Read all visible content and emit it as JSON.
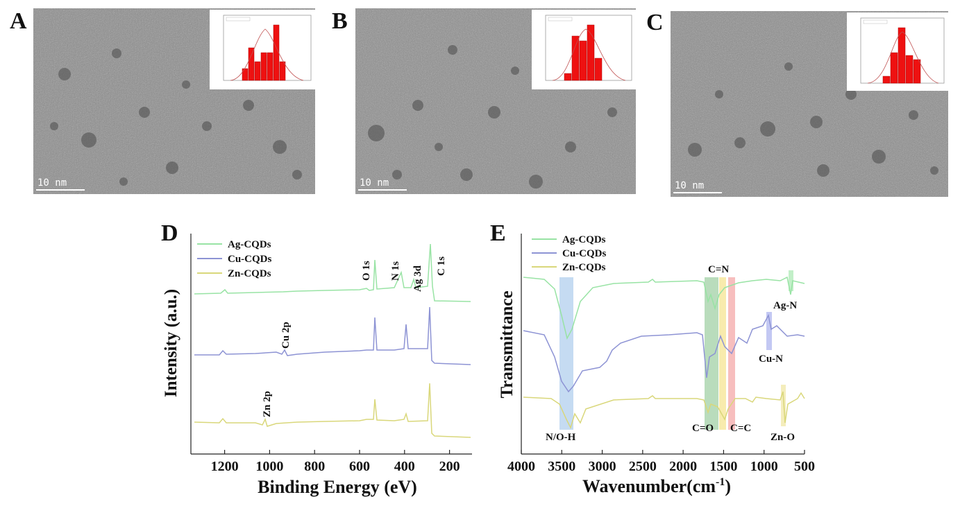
{
  "panels": {
    "A": {
      "letter": "A",
      "scale": "10 nm"
    },
    "B": {
      "letter": "B",
      "scale": "10 nm"
    },
    "C": {
      "letter": "C",
      "scale": "10 nm"
    },
    "D": {
      "letter": "D"
    },
    "E": {
      "letter": "E"
    }
  },
  "colors": {
    "ag": "#98e3a4",
    "cu": "#8d93d4",
    "zn": "#d9d77a",
    "bar": "#ee1111"
  },
  "chart_data": [
    {
      "id": "D",
      "type": "line",
      "xlabel": "Binding Energy (eV)",
      "ylabel": "Intensity (a.u.)",
      "xlim": [
        1350,
        100
      ],
      "xticks": [
        1200,
        1000,
        800,
        600,
        400,
        200
      ],
      "legend_position": "top-left",
      "series": [
        {
          "name": "Ag-CQDs",
          "color": "#98e3a4"
        },
        {
          "name": "Cu-CQDs",
          "color": "#8d93d4"
        },
        {
          "name": "Zn-CQDs",
          "color": "#d9d77a"
        }
      ],
      "annotations": [
        "O 1s",
        "N 1s",
        "Ag 3d",
        "C 1s",
        "Cu 2p",
        "Zn 2p"
      ]
    },
    {
      "id": "E",
      "type": "line",
      "xlabel": "Wavenumber(cm",
      "xlabel_sup": "-1",
      "xlabel_tail": ")",
      "ylabel": "Transmittance",
      "xlim": [
        4000,
        500
      ],
      "xticks": [
        4000,
        3500,
        3000,
        2500,
        2000,
        1500,
        1000,
        500
      ],
      "legend_position": "top-left",
      "series": [
        {
          "name": "Ag-CQDs",
          "color": "#98e3a4"
        },
        {
          "name": "Cu-CQDs",
          "color": "#8d93d4"
        },
        {
          "name": "Zn-CQDs",
          "color": "#d9d77a"
        }
      ],
      "annotations": [
        "C=N",
        "Ag-N",
        "Cu-N",
        "N/O-H",
        "C=O",
        "C=C",
        "Zn-O"
      ]
    }
  ]
}
